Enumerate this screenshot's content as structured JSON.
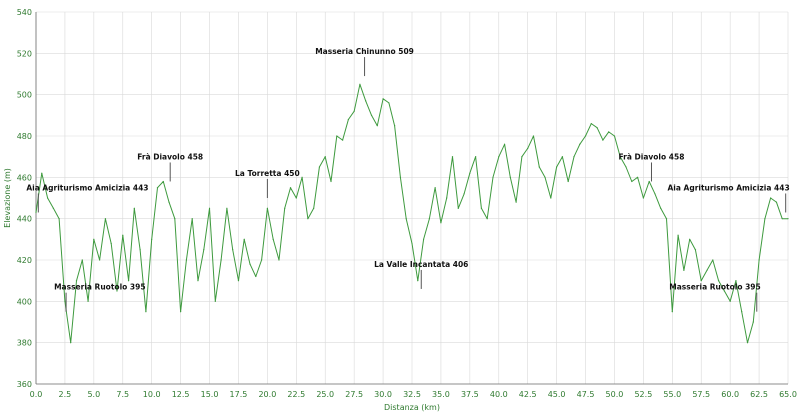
{
  "chart_data": {
    "type": "line",
    "title": "",
    "xlabel": "Distanza (km)",
    "ylabel": "Elevazione (m)",
    "xlim": [
      0,
      65
    ],
    "ylim": [
      360,
      540
    ],
    "x_ticks": [
      "0.0",
      "2.5",
      "5.0",
      "7.5",
      "10.0",
      "12.5",
      "15.0",
      "17.5",
      "20.0",
      "22.5",
      "25.0",
      "27.5",
      "30.0",
      "32.5",
      "35.0",
      "37.5",
      "40.0",
      "42.5",
      "45.0",
      "47.5",
      "50.0",
      "52.5",
      "55.0",
      "57.5",
      "60.0",
      "62.5",
      "65.0"
    ],
    "y_ticks": [
      "360",
      "380",
      "400",
      "420",
      "440",
      "460",
      "480",
      "500",
      "520",
      "540"
    ],
    "grid": true,
    "legend": "none",
    "line_color": "#3e9a3e",
    "series": [
      {
        "x": [
          0,
          0.5,
          1,
          1.5,
          2,
          2.5,
          3,
          3.5,
          4,
          4.5,
          5,
          5.5,
          6,
          6.5,
          7,
          7.5,
          8,
          8.5,
          9,
          9.5,
          10,
          10.5,
          11,
          11.5,
          12,
          12.5,
          13,
          13.5,
          14,
          14.5,
          15,
          15.5,
          16,
          16.5,
          17,
          17.5,
          18,
          18.5,
          19,
          19.5,
          20,
          20.5,
          21,
          21.5,
          22,
          22.5,
          23,
          23.5,
          24,
          24.5,
          25,
          25.5,
          26,
          26.5,
          27,
          27.5,
          28,
          28.5,
          29,
          29.5,
          30,
          30.5,
          31,
          31.5,
          32,
          32.5,
          33,
          33.5,
          34,
          34.5,
          35,
          35.5,
          36,
          36.5,
          37,
          37.5,
          38,
          38.5,
          39,
          39.5,
          40,
          40.5,
          41,
          41.5,
          42,
          42.5,
          43,
          43.5,
          44,
          44.5,
          45,
          45.5,
          46,
          46.5,
          47,
          47.5,
          48,
          48.5,
          49,
          49.5,
          50,
          50.5,
          51,
          51.5,
          52,
          52.5,
          53,
          53.5,
          54,
          54.5,
          55,
          55.5,
          56,
          56.5,
          57,
          57.5,
          58,
          58.5,
          59,
          59.5,
          60,
          60.5,
          61,
          61.5,
          62,
          62.5,
          63,
          63.5,
          64,
          64.5,
          65
        ],
        "y": [
          443,
          462,
          450,
          445,
          440,
          400,
          380,
          410,
          420,
          400,
          430,
          420,
          440,
          428,
          405,
          432,
          410,
          445,
          425,
          395,
          430,
          455,
          458,
          448,
          440,
          395,
          420,
          440,
          410,
          425,
          445,
          400,
          420,
          445,
          425,
          410,
          430,
          418,
          412,
          420,
          445,
          430,
          420,
          445,
          455,
          450,
          460,
          440,
          445,
          465,
          470,
          458,
          480,
          478,
          488,
          492,
          505,
          497,
          490,
          485,
          498,
          496,
          485,
          460,
          440,
          428,
          410,
          430,
          440,
          455,
          438,
          450,
          470,
          445,
          452,
          462,
          470,
          445,
          440,
          460,
          470,
          476,
          460,
          448,
          470,
          474,
          480,
          465,
          460,
          450,
          465,
          470,
          458,
          470,
          476,
          480,
          486,
          484,
          478,
          482,
          480,
          470,
          465,
          458,
          460,
          450,
          458,
          452,
          445,
          440,
          395,
          432,
          415,
          430,
          425,
          410,
          415,
          420,
          410,
          405,
          400,
          410,
          395,
          380,
          390,
          420,
          440,
          450,
          448,
          440,
          440
        ]
      }
    ],
    "annotations": [
      {
        "label": "Aia Agriturismo Amicizia 443",
        "x": 0.2,
        "y": 443
      },
      {
        "label": "Masseria Ruotolo 395",
        "x": 2.6,
        "y": 395
      },
      {
        "label": "Frà Diavolo 458",
        "x": 11.6,
        "y": 458
      },
      {
        "label": "La Torretta 450",
        "x": 20.0,
        "y": 450
      },
      {
        "label": "Masseria Chinunno 509",
        "x": 28.4,
        "y": 509
      },
      {
        "label": "La Valle Incantata 406",
        "x": 33.3,
        "y": 406
      },
      {
        "label": "Frà Diavolo 458",
        "x": 53.2,
        "y": 458
      },
      {
        "label": "Masseria Ruotolo 395",
        "x": 62.3,
        "y": 395
      },
      {
        "label": "Aia Agriturismo Amicizia 443",
        "x": 64.8,
        "y": 443
      }
    ]
  }
}
